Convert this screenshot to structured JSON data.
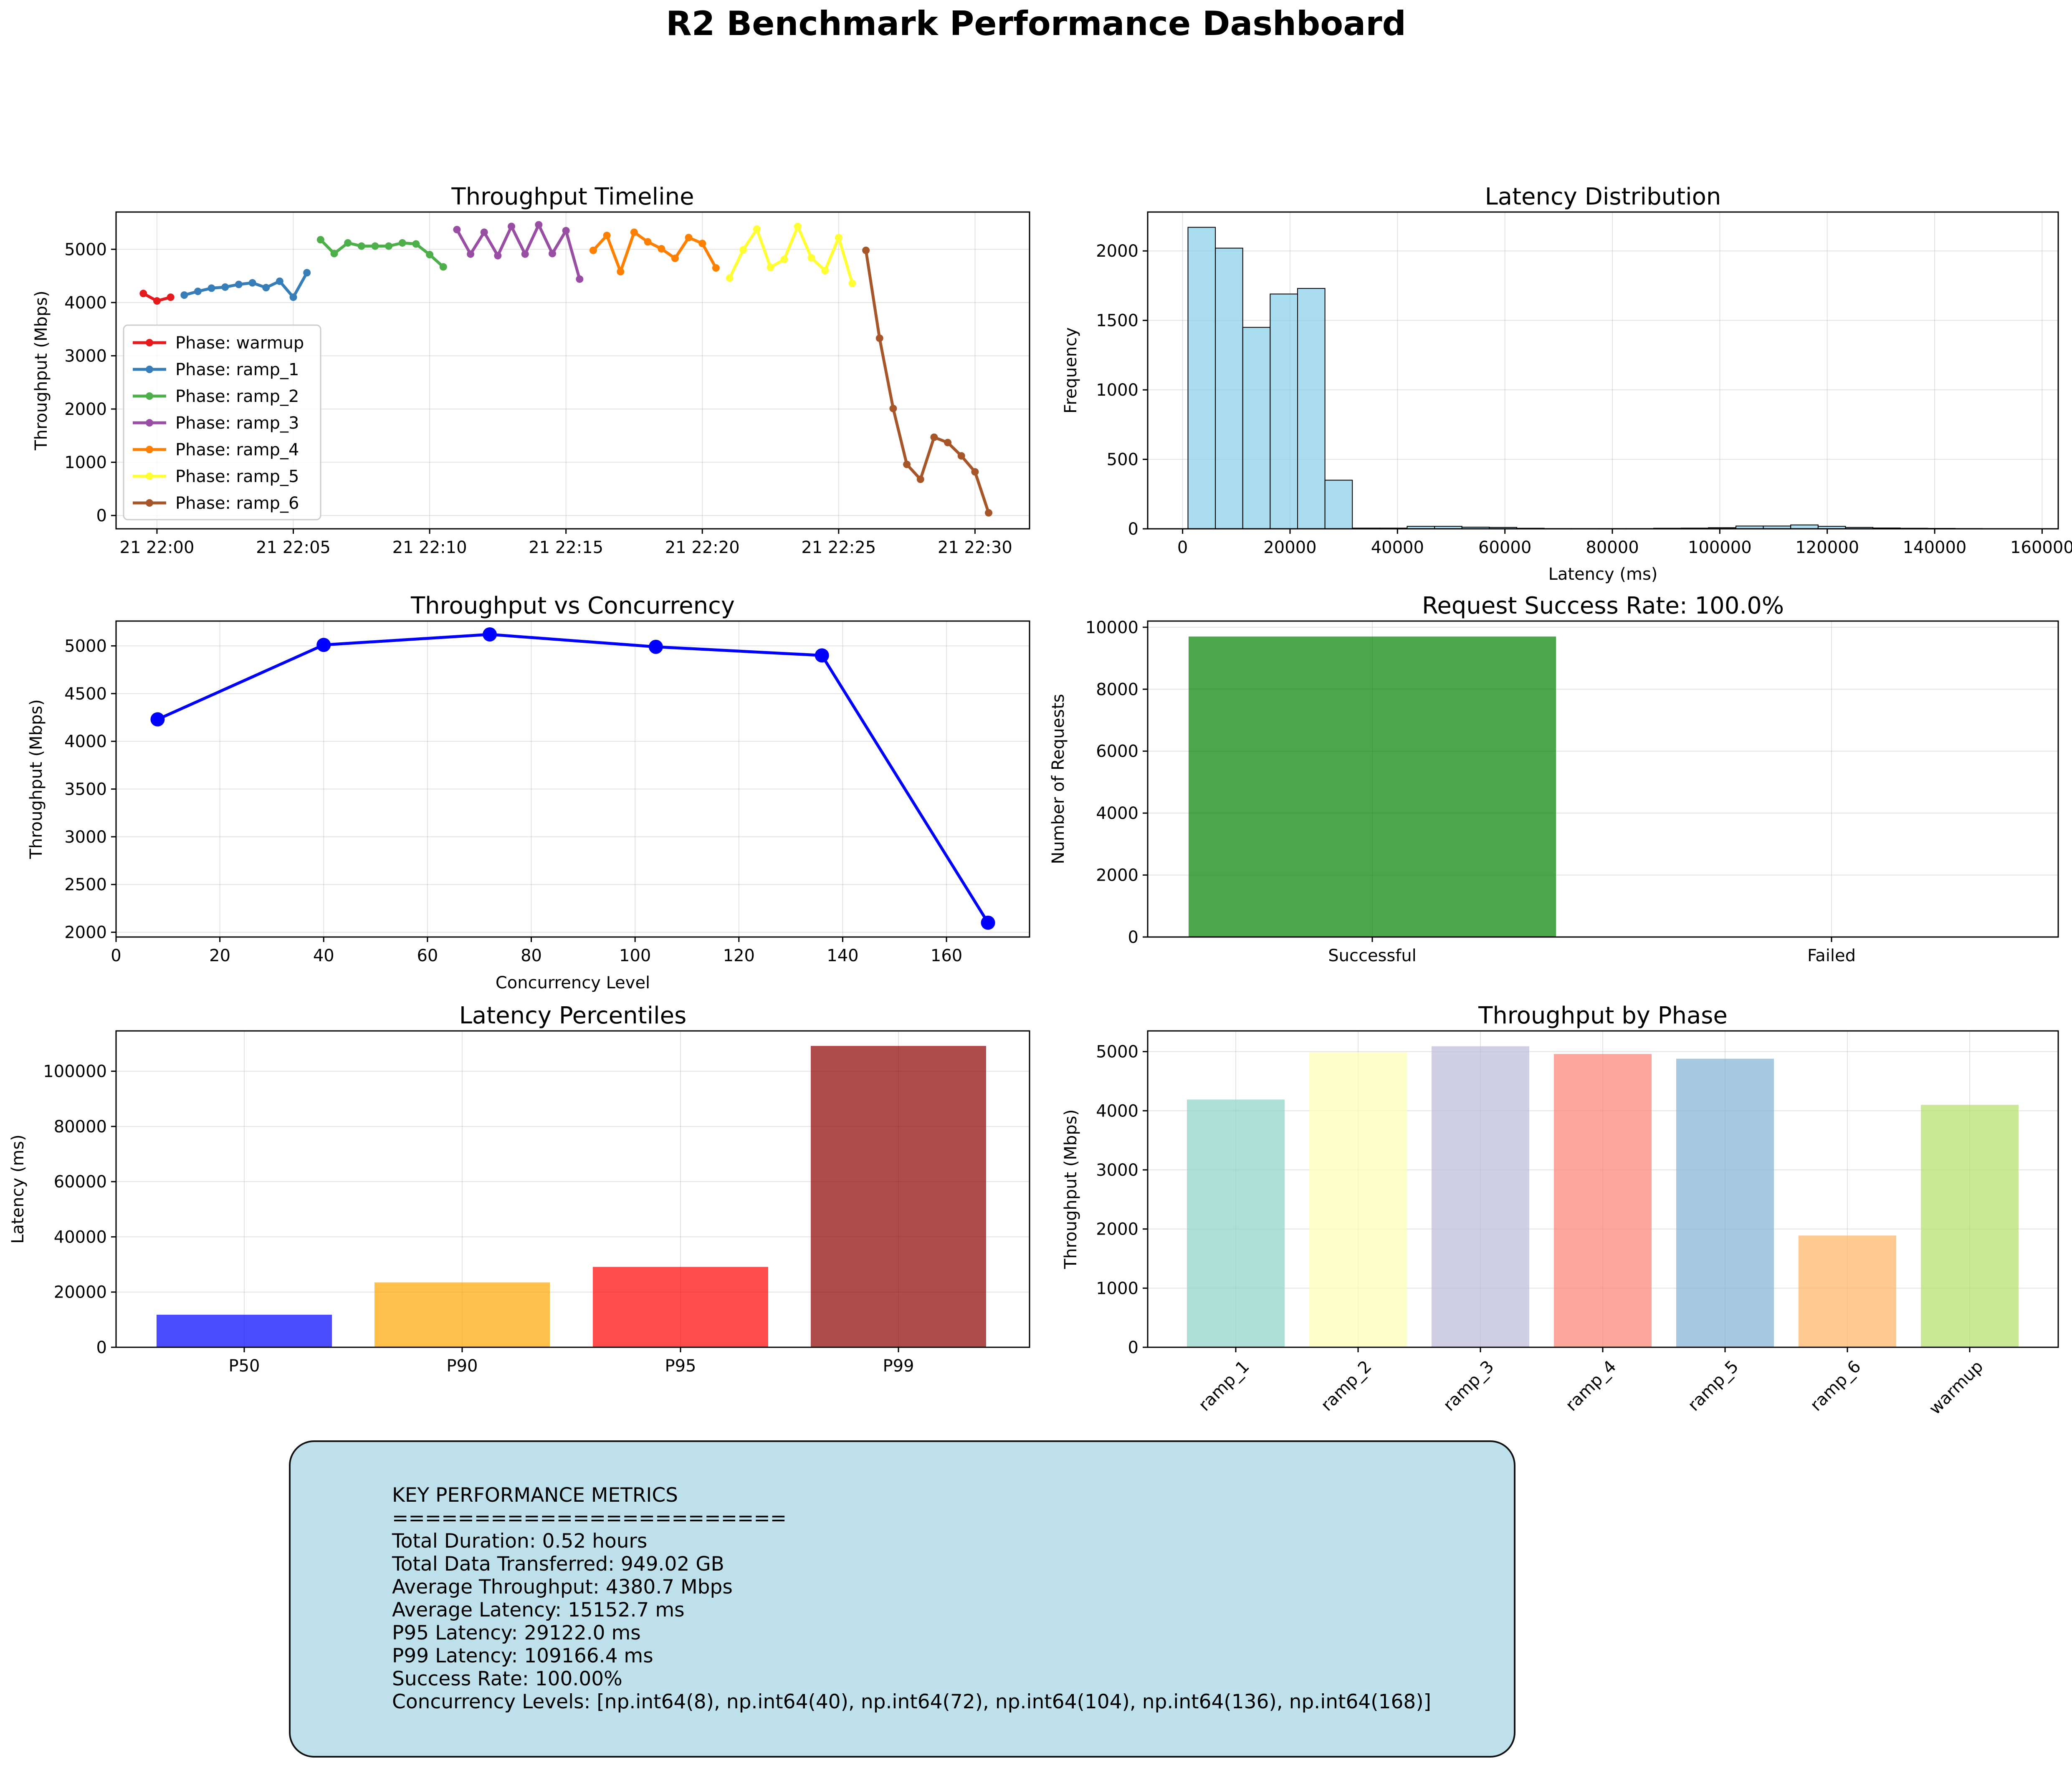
{
  "dashboard_title": "R2 Benchmark Performance Dashboard",
  "colors": {
    "warmup": "#e41a1c",
    "ramp_1": "#377eb8",
    "ramp_2": "#4daf4a",
    "ramp_3": "#984ea3",
    "ramp_4": "#ff7f00",
    "ramp_5": "#ffff33",
    "ramp_6": "#a65628",
    "hist_fill": "#87ceeb",
    "concurrency_line": "#0000ff",
    "success": "#008000",
    "failed": "#ff0000",
    "grid": "#b0b0b0",
    "metrics_box": "#add8e6"
  },
  "metrics_box": {
    "lines": [
      "KEY PERFORMANCE METRICS",
      "========================",
      "Total Duration: 0.52 hours",
      "Total Data Transferred: 949.02 GB",
      "Average Throughput: 4380.7 Mbps",
      "Average Latency: 15152.7 ms",
      "P95 Latency: 29122.0 ms",
      "P99 Latency: 109166.4 ms",
      "Success Rate: 100.00%",
      "Concurrency Levels: [np.int64(8), np.int64(40), np.int64(72), np.int64(104), np.int64(136), np.int64(168)]"
    ]
  },
  "chart_data": [
    {
      "type": "line",
      "title": "Throughput Timeline",
      "xlabel": "",
      "ylabel": "Throughput (Mbps)",
      "x_unit": "time (minutes after 21 22:00)",
      "xlim": [
        -1.5,
        32.0
      ],
      "ylim": [
        -250,
        5700
      ],
      "x_ticks": [
        0,
        5,
        10,
        15,
        20,
        25,
        30
      ],
      "x_tick_labels": [
        "21 22:00",
        "21 22:05",
        "21 22:10",
        "21 22:15",
        "21 22:20",
        "21 22:25",
        "21 22:30"
      ],
      "y_ticks": [
        0,
        1000,
        2000,
        3000,
        4000,
        5000
      ],
      "legend_position": "center-left",
      "grid": true,
      "series": [
        {
          "name": "Phase: warmup",
          "key": "warmup",
          "x": [
            -0.5,
            0.0,
            0.5
          ],
          "y": [
            4170,
            4030,
            4100
          ]
        },
        {
          "name": "Phase: ramp_1",
          "key": "ramp_1",
          "x": [
            1.0,
            1.5,
            2.0,
            2.5,
            3.0,
            3.5,
            4.0,
            4.5,
            5.0,
            5.5
          ],
          "y": [
            4140,
            4210,
            4270,
            4290,
            4340,
            4370,
            4280,
            4400,
            4100,
            4560
          ]
        },
        {
          "name": "Phase: ramp_2",
          "key": "ramp_2",
          "x": [
            6.0,
            6.5,
            7.0,
            7.5,
            8.0,
            8.5,
            9.0,
            9.5,
            10.0,
            10.5
          ],
          "y": [
            5180,
            4920,
            5120,
            5060,
            5060,
            5060,
            5120,
            5100,
            4900,
            4670
          ]
        },
        {
          "name": "Phase: ramp_3",
          "key": "ramp_3",
          "x": [
            11.0,
            11.5,
            12.0,
            12.5,
            13.0,
            13.5,
            14.0,
            14.5,
            15.0,
            15.5
          ],
          "y": [
            5370,
            4910,
            5320,
            4880,
            5430,
            4910,
            5460,
            4920,
            5350,
            4440
          ]
        },
        {
          "name": "Phase: ramp_4",
          "key": "ramp_4",
          "x": [
            16.0,
            16.5,
            17.0,
            17.5,
            18.0,
            18.5,
            19.0,
            19.5,
            20.0,
            20.5
          ],
          "y": [
            4980,
            5260,
            4580,
            5320,
            5140,
            5010,
            4830,
            5220,
            5110,
            4650
          ]
        },
        {
          "name": "Phase: ramp_5",
          "key": "ramp_5",
          "x": [
            21.0,
            21.5,
            22.0,
            22.5,
            23.0,
            23.5,
            24.0,
            24.5,
            25.0,
            25.5
          ],
          "y": [
            4460,
            4990,
            5380,
            4660,
            4810,
            5430,
            4840,
            4600,
            5220,
            4360
          ]
        },
        {
          "name": "Phase: ramp_6",
          "key": "ramp_6",
          "x": [
            26.0,
            26.5,
            27.0,
            27.5,
            28.0,
            28.5,
            29.0,
            29.5,
            30.0,
            30.5
          ],
          "y": [
            4980,
            3330,
            2010,
            960,
            680,
            1470,
            1370,
            1120,
            820,
            50
          ]
        }
      ]
    },
    {
      "type": "bar",
      "title": "Latency Distribution",
      "xlabel": "Latency (ms)",
      "ylabel": "Frequency",
      "xlim": [
        -6500,
        163000
      ],
      "ylim": [
        0,
        2280
      ],
      "x_ticks": [
        0,
        20000,
        40000,
        60000,
        80000,
        100000,
        120000,
        140000,
        160000
      ],
      "y_ticks": [
        0,
        500,
        1000,
        1500,
        2000
      ],
      "grid": true,
      "bin_start": 1000,
      "bin_width": 5100,
      "frequencies": [
        2170,
        2020,
        1450,
        1690,
        1730,
        350,
        5,
        5,
        18,
        18,
        12,
        10,
        4,
        2,
        2,
        2,
        2,
        4,
        5,
        8,
        20,
        20,
        28,
        18,
        10,
        6,
        4,
        3,
        2,
        1
      ]
    },
    {
      "type": "line",
      "title": "Throughput vs Concurrency",
      "xlabel": "Concurrency Level",
      "ylabel": "Throughput (Mbps)",
      "xlim": [
        0,
        176
      ],
      "ylim": [
        1950,
        5260
      ],
      "x_ticks": [
        0,
        20,
        40,
        60,
        80,
        100,
        120,
        140,
        160
      ],
      "y_ticks": [
        2000,
        2500,
        3000,
        3500,
        4000,
        4500,
        5000
      ],
      "grid": true,
      "x": [
        8,
        40,
        72,
        104,
        136,
        168
      ],
      "y": [
        4230,
        5010,
        5120,
        4990,
        4900,
        2100
      ]
    },
    {
      "type": "bar",
      "title": "Request Success Rate: 100.0%",
      "xlabel": "",
      "ylabel": "Number of Requests",
      "ylim": [
        0,
        10200
      ],
      "y_ticks": [
        0,
        2000,
        4000,
        6000,
        8000,
        10000
      ],
      "grid": true,
      "categories": [
        "Successful",
        "Failed"
      ],
      "values": [
        9700,
        0
      ]
    },
    {
      "type": "bar",
      "title": "Latency Percentiles",
      "xlabel": "",
      "ylabel": "Latency (ms)",
      "ylim": [
        0,
        114600
      ],
      "y_ticks": [
        0,
        20000,
        40000,
        60000,
        80000,
        100000
      ],
      "grid": true,
      "categories": [
        "P50",
        "P90",
        "P95",
        "P99"
      ],
      "values": [
        11800,
        23500,
        29122,
        109166
      ],
      "bar_colors": [
        "#0000ff",
        "#ffa500",
        "#ff0000",
        "#8b0000"
      ]
    },
    {
      "type": "bar",
      "title": "Throughput by Phase",
      "xlabel": "",
      "ylabel": "Throughput (Mbps)",
      "ylim": [
        0,
        5350
      ],
      "y_ticks": [
        0,
        1000,
        2000,
        3000,
        4000,
        5000
      ],
      "grid": true,
      "categories": [
        "ramp_1",
        "ramp_2",
        "ramp_3",
        "ramp_4",
        "ramp_5",
        "ramp_6",
        "warmup"
      ],
      "values": [
        4190,
        4990,
        5090,
        4960,
        4880,
        1890,
        4100
      ],
      "bar_colors": [
        "#8dd3c7",
        "#ffffb3",
        "#bebada",
        "#fb8072",
        "#80b1d3",
        "#fdb462",
        "#b3de69"
      ]
    }
  ]
}
